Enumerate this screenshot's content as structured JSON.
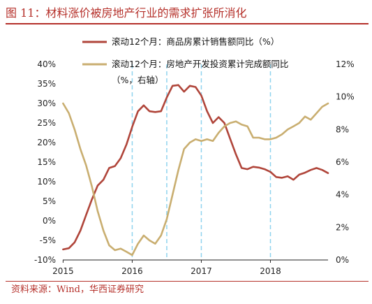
{
  "figure": {
    "title": "图 11：材料涨价被房地产行业的需求扩张所消化",
    "source": "资料来源：Wind，华西证券研究"
  },
  "chart_data": {
    "type": "line",
    "x_ticks": [
      "2015",
      "2016",
      "2017",
      "2018"
    ],
    "x_range": [
      "2015-01",
      "2018-11"
    ],
    "y_left": {
      "ticks": [
        "40%",
        "35%",
        "30%",
        "25%",
        "20%",
        "15%",
        "10%",
        "5%",
        "0%",
        "-5%",
        "-10%"
      ],
      "range": [
        -10,
        40
      ]
    },
    "y_right": {
      "ticks": [
        "12%",
        "10%",
        "8%",
        "6%",
        "4%",
        "2%",
        "0%"
      ],
      "range": [
        0,
        12
      ]
    },
    "vertical_guides": [
      "2016-01",
      "2016-07",
      "2017-01",
      "2018-01"
    ],
    "grid": false,
    "series": [
      {
        "name": "滚动12个月：商品房累计销售额同比（%）",
        "axis": "left",
        "color": "#b0453a",
        "x": [
          "2015-01",
          "2015-02",
          "2015-03",
          "2015-04",
          "2015-05",
          "2015-06",
          "2015-07",
          "2015-08",
          "2015-09",
          "2015-10",
          "2015-11",
          "2015-12",
          "2016-01",
          "2016-02",
          "2016-03",
          "2016-04",
          "2016-05",
          "2016-06",
          "2016-07",
          "2016-08",
          "2016-09",
          "2016-10",
          "2016-11",
          "2016-12",
          "2017-01",
          "2017-02",
          "2017-03",
          "2017-04",
          "2017-05",
          "2017-06",
          "2017-07",
          "2017-08",
          "2017-09",
          "2017-10",
          "2017-11",
          "2017-12",
          "2018-01",
          "2018-02",
          "2018-03",
          "2018-04",
          "2018-05",
          "2018-06",
          "2018-07",
          "2018-08",
          "2018-09",
          "2018-10",
          "2018-11"
        ],
        "y": [
          -7.3,
          -7,
          -5.5,
          -2.5,
          1.5,
          5.5,
          9,
          10.5,
          13.5,
          14,
          16,
          19.5,
          24,
          28,
          29.5,
          28,
          27.8,
          28,
          31.5,
          34.5,
          34.7,
          33,
          34.5,
          34.2,
          32,
          28,
          25,
          26.5,
          25,
          21,
          17,
          13.5,
          13.2,
          13.8,
          13.6,
          13.2,
          12.5,
          11.2,
          11,
          11.4,
          10.5,
          11.8,
          12.3,
          13,
          13.5,
          13,
          12.2
        ]
      },
      {
        "name": "滚动12个月：房地产开发投资累计完成额同比",
        "name_line2": "（%，右轴）",
        "axis": "right",
        "color": "#c9ae70",
        "x": [
          "2015-01",
          "2015-02",
          "2015-03",
          "2015-04",
          "2015-05",
          "2015-06",
          "2015-07",
          "2015-08",
          "2015-09",
          "2015-10",
          "2015-11",
          "2015-12",
          "2016-01",
          "2016-02",
          "2016-03",
          "2016-04",
          "2016-05",
          "2016-06",
          "2016-07",
          "2016-08",
          "2016-09",
          "2016-10",
          "2016-11",
          "2016-12",
          "2017-01",
          "2017-02",
          "2017-03",
          "2017-04",
          "2017-05",
          "2017-06",
          "2017-07",
          "2017-08",
          "2017-09",
          "2017-10",
          "2017-11",
          "2017-12",
          "2018-01",
          "2018-02",
          "2018-03",
          "2018-04",
          "2018-05",
          "2018-06",
          "2018-07",
          "2018-08",
          "2018-09",
          "2018-10",
          "2018-11"
        ],
        "y": [
          9.6,
          9,
          8,
          6.8,
          5.8,
          4.5,
          3,
          1.8,
          0.9,
          0.6,
          0.7,
          0.5,
          0.3,
          1,
          1.5,
          1.2,
          1,
          1.5,
          2.5,
          4,
          5.5,
          6.8,
          7.2,
          7.4,
          7.3,
          7.4,
          7.3,
          7.8,
          8.2,
          8.4,
          8.5,
          8.3,
          8.2,
          7.5,
          7.5,
          7.4,
          7.4,
          7.5,
          7.7,
          8,
          8.2,
          8.4,
          8.8,
          8.6,
          9,
          9.4,
          9.6
        ]
      }
    ]
  }
}
